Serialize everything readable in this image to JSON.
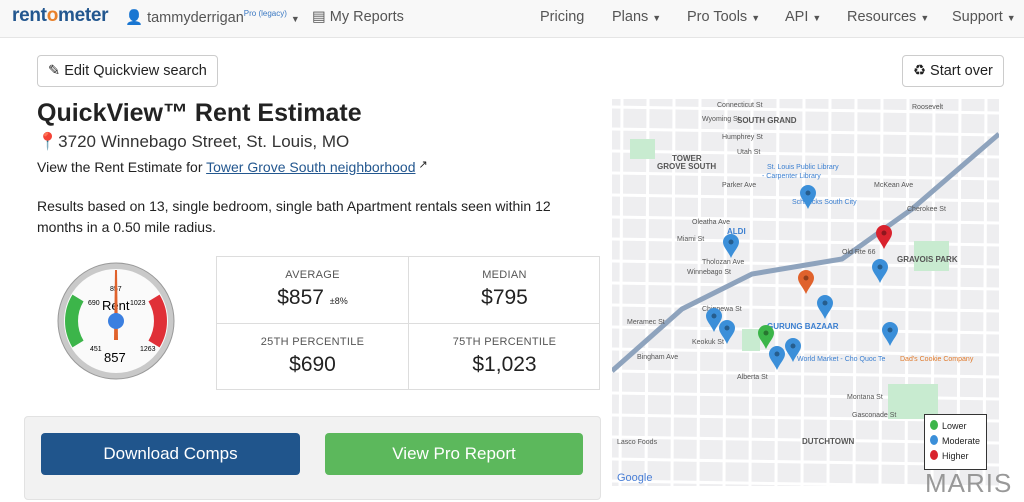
{
  "nav": {
    "logo": "rentometer",
    "user": "tammyderrigan",
    "user_badge": "Pro (legacy)",
    "reports": "My Reports",
    "items": [
      "Pricing",
      "Plans",
      "Pro Tools",
      "API",
      "Resources",
      "Support"
    ]
  },
  "actions": {
    "edit": "Edit Quickview search",
    "start_over": "Start over"
  },
  "title": "QuickView™ Rent Estimate",
  "address": "3720 Winnebago Street, St. Louis, MO",
  "neighborhood": {
    "prefix": "View the Rent Estimate for ",
    "link": "Tower Grove South neighborhood"
  },
  "results_text": "Results based on 13, single bedroom, single bath Apartment rentals seen within 12 months in a 0.50 mile radius.",
  "gauge": {
    "label": "Rent",
    "value": "857",
    "min": "451",
    "p25": "690",
    "mid": "857",
    "p75": "1023",
    "max": "1263",
    "colors": {
      "low": "#3cb54a",
      "high": "#e03038",
      "needle": "#e0622c",
      "hub": "#3b7fe0"
    }
  },
  "stats": {
    "average_label": "AVERAGE",
    "average": "$857",
    "average_pm": "±8%",
    "median_label": "MEDIAN",
    "median": "$795",
    "p25_label": "25TH PERCENTILE",
    "p25": "$690",
    "p75_label": "75TH PERCENTILE",
    "p75": "$1,023"
  },
  "buttons": {
    "download": "Download Comps",
    "pro_report": "View Pro Report",
    "download_color": "#20558c",
    "pro_color": "#5cb85c"
  },
  "map": {
    "labels": [
      "Connecticut St",
      "Wyoming St",
      "SOUTH GRAND",
      "Humphrey St",
      "Utah St",
      "TOWER",
      "GROVE SOUTH",
      "St. Louis Public Library",
      "- Carpenter Library",
      "Parker Ave",
      "McKean Ave",
      "Schnucks South City",
      "Cherokee St",
      "Oleatha Ave",
      "ALDI",
      "Miami St",
      "Tholozan Ave",
      "Old Rte 66",
      "GRAVOIS PARK",
      "Winnebago St",
      "Chippewa St",
      "GURUNG BAZAAR",
      "Keokuk St",
      "World Market - Cho Quoc Te",
      "Dad's Cookie Company",
      "Alberta St",
      "Meramec St",
      "Bingham Ave",
      "Montana St",
      "Gasconade St",
      "DUTCHTOWN",
      "Lasco Foods",
      "Roosevelt",
      "Google"
    ],
    "legend": [
      {
        "label": "Lower",
        "color": "#3cb54a"
      },
      {
        "label": "Moderate",
        "color": "#3b8fd9"
      },
      {
        "label": "Higher",
        "color": "#d9232e"
      }
    ],
    "pins": [
      "moderate",
      "moderate",
      "higher",
      "moderate",
      "subject",
      "moderate",
      "moderate",
      "moderate",
      "lower",
      "moderate",
      "moderate",
      "moderate"
    ],
    "watermark": "MARIS"
  }
}
